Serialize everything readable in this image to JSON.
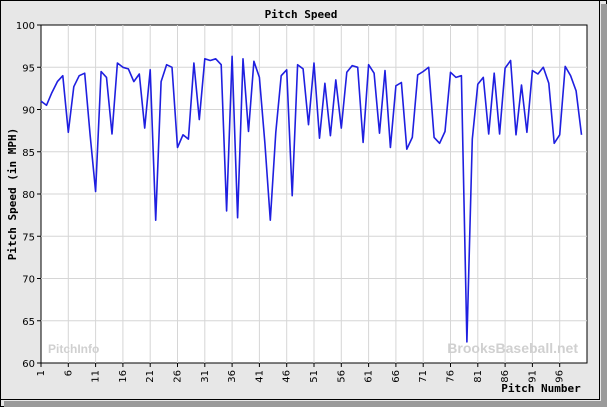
{
  "chart_data": {
    "type": "line",
    "title": "Pitch Speed",
    "xlabel": "Pitch Number",
    "ylabel": "Pitch Speed (in MPH)",
    "xlim": [
      1,
      101
    ],
    "ylim": [
      60,
      100
    ],
    "xticks": [
      1,
      6,
      11,
      16,
      21,
      26,
      31,
      36,
      41,
      46,
      51,
      56,
      61,
      66,
      71,
      76,
      81,
      86,
      91,
      96
    ],
    "yticks": [
      60,
      65,
      70,
      75,
      80,
      85,
      90,
      95,
      100
    ],
    "grid": true,
    "line_color": "#1f1fe0",
    "watermarks": [
      "PitchInfo",
      "BrooksBaseball.net"
    ],
    "series": [
      {
        "values": [
          91.0,
          90.5,
          92.0,
          93.3,
          94.0,
          87.3,
          92.7,
          94.0,
          94.3,
          87.0,
          80.3,
          94.5,
          93.8,
          87.1,
          95.5,
          95.0,
          94.8,
          93.3,
          94.2,
          87.8,
          94.7,
          76.9,
          93.3,
          95.3,
          95.0,
          85.5,
          87.0,
          86.5,
          95.5,
          88.8,
          96.0,
          95.8,
          96.0,
          95.3,
          78.0,
          96.3,
          77.2,
          96.0,
          87.4,
          95.7,
          93.8,
          86.0,
          76.9,
          87.3,
          94.0,
          94.7,
          79.8,
          95.3,
          94.8,
          88.2,
          95.5,
          86.6,
          93.1,
          86.9,
          93.5,
          87.8,
          94.4,
          95.2,
          95.0,
          86.1,
          95.3,
          94.3,
          87.2,
          94.6,
          85.5,
          92.8,
          93.2,
          85.3,
          86.7,
          94.1,
          94.5,
          95.0,
          86.7,
          86.0,
          87.4,
          94.4,
          93.8,
          94.0,
          62.5,
          86.5,
          93.0,
          93.8,
          87.1,
          94.3,
          87.1,
          94.9,
          95.8,
          87.0,
          92.9,
          87.3,
          94.6,
          94.2,
          95.0,
          93.1,
          86.0,
          87.0,
          95.1,
          94.0,
          92.2,
          87.0
        ]
      }
    ]
  }
}
